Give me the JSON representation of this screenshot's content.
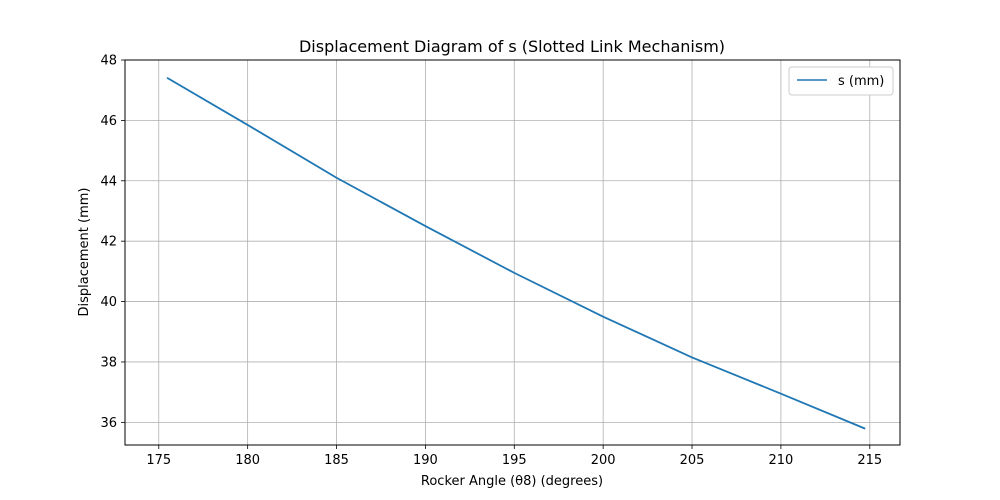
{
  "chart_data": {
    "type": "line",
    "title": "Displacement Diagram of s (Slotted Link Mechanism)",
    "xlabel": "Rocker Angle (θ8) (degrees)",
    "ylabel": "Displacement (mm)",
    "xlim": [
      173.1,
      216.7
    ],
    "ylim": [
      35.25,
      48.0
    ],
    "xticks": [
      175,
      180,
      185,
      190,
      195,
      200,
      205,
      210,
      215
    ],
    "yticks": [
      36,
      38,
      40,
      42,
      44,
      46,
      48
    ],
    "grid": true,
    "legend_position": "top-right",
    "series": [
      {
        "name": "s (mm)",
        "color": "#1f77b4",
        "x": [
          175.5,
          180,
          185,
          190,
          195,
          200,
          205,
          210,
          214.7
        ],
        "y": [
          47.4,
          45.85,
          44.1,
          42.5,
          40.95,
          39.5,
          38.15,
          36.95,
          35.8
        ]
      }
    ]
  }
}
